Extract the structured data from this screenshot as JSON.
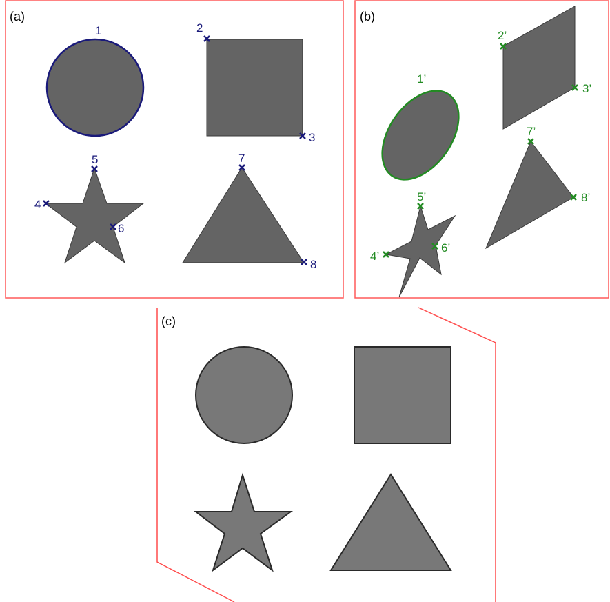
{
  "panels": [
    {
      "id": "a",
      "label": "(a)"
    },
    {
      "id": "b",
      "label": "(b)"
    },
    {
      "id": "c",
      "label": "(c)"
    }
  ],
  "colors": {
    "frame": "#ff4d4d",
    "shape_fill_a": "#646464",
    "shape_fill_c": "#787878",
    "circle_outline_a": "#1a1a7a",
    "marker_a": "#1a1a7a",
    "marker_b": "#228b22",
    "shape_edge": "#3a3a3a"
  },
  "panel_a_points": [
    "1",
    "2",
    "3",
    "4",
    "5",
    "6",
    "7",
    "8"
  ],
  "panel_b_points": [
    "1’",
    "2’",
    "3’",
    "4’",
    "5’",
    "6’",
    "7’",
    "8’"
  ]
}
